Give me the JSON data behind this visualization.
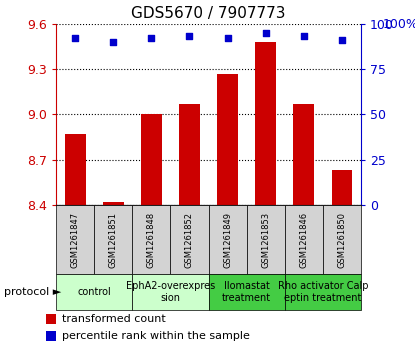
{
  "title": "GDS5670 / 7907773",
  "samples": [
    "GSM1261847",
    "GSM1261851",
    "GSM1261848",
    "GSM1261852",
    "GSM1261849",
    "GSM1261853",
    "GSM1261846",
    "GSM1261850"
  ],
  "bar_values": [
    8.87,
    8.42,
    9.0,
    9.07,
    9.27,
    9.48,
    9.07,
    8.63
  ],
  "dot_values": [
    92,
    90,
    92,
    93,
    92,
    95,
    93,
    91
  ],
  "ylim_left": [
    8.4,
    9.6
  ],
  "ylim_right": [
    0,
    100
  ],
  "yticks_left": [
    8.4,
    8.7,
    9.0,
    9.3,
    9.6
  ],
  "yticks_right": [
    0,
    25,
    50,
    75,
    100
  ],
  "bar_color": "#cc0000",
  "dot_color": "#0000cc",
  "bar_bottom": 8.4,
  "groups": [
    {
      "label": "control",
      "cols": [
        0,
        1
      ],
      "color": "#ccffcc"
    },
    {
      "label": "EphA2-overexpres\nsion",
      "cols": [
        2,
        3
      ],
      "color": "#ccffcc"
    },
    {
      "label": "Ilomastat\ntreatment",
      "cols": [
        4,
        5
      ],
      "color": "#44cc44"
    },
    {
      "label": "Rho activator Calp\neptin treatment",
      "cols": [
        6,
        7
      ],
      "color": "#44cc44"
    }
  ],
  "sample_bg_color": "#d3d3d3",
  "protocol_label": "protocol",
  "legend_bar_label": "transformed count",
  "legend_dot_label": "percentile rank within the sample",
  "bar_color_legend": "#cc0000",
  "dot_color_legend": "#0000cc",
  "xlabel_color": "#cc0000",
  "ylabel_right_color": "#0000cc",
  "title_fontsize": 11,
  "tick_fontsize": 9,
  "sample_fontsize": 6,
  "group_fontsize": 7,
  "legend_fontsize": 8
}
